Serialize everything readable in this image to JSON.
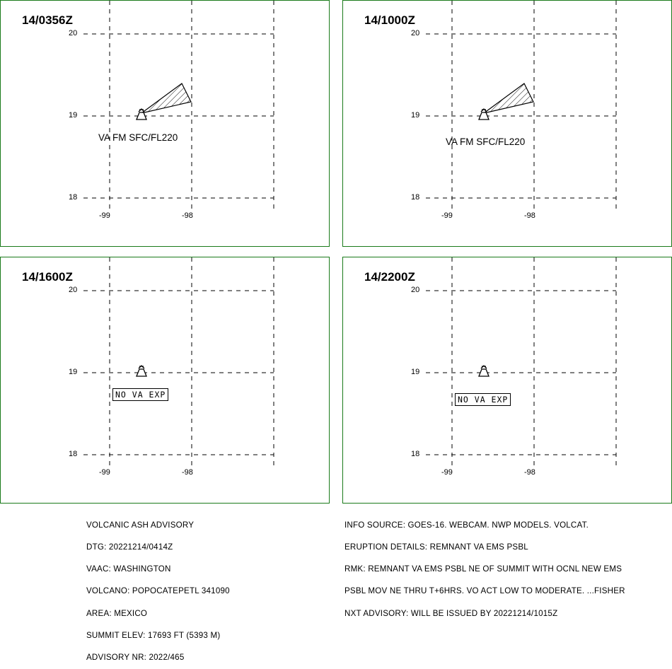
{
  "panels": [
    {
      "time": "14/0356Z",
      "ash_label": "VA FM SFC/FL220",
      "no_va": ""
    },
    {
      "time": "14/1000Z",
      "ash_label": "VA FM SFC/FL220",
      "no_va": ""
    },
    {
      "time": "14/1600Z",
      "ash_label": "",
      "no_va": "NO VA EXP"
    },
    {
      "time": "14/2200Z",
      "ash_label": "",
      "no_va": "NO VA EXP"
    }
  ],
  "axes": {
    "lat_labels": [
      "20",
      "19",
      "18"
    ],
    "lon_labels": [
      "-99",
      "-98"
    ]
  },
  "colors": {
    "panel_border": "#1a7a1a"
  },
  "advisory": {
    "lines": [
      "VOLCANIC ASH ADVISORY",
      "DTG: 20221214/0414Z",
      "VAAC: WASHINGTON",
      "VOLCANO: POPOCATEPETL 341090",
      "AREA: MEXICO",
      "SUMMIT ELEV: 17693 FT (5393 M)",
      "ADVISORY NR: 2022/465"
    ]
  },
  "info": {
    "lines": [
      "INFO SOURCE: GOES-16. WEBCAM. NWP MODELS. VOLCAT.",
      "ERUPTION DETAILS: REMNANT VA EMS PSBL",
      "RMK: REMNANT VA EMS PSBL NE OF SUMMIT WITH OCNL NEW EMS",
      "PSBL MOV NE THRU T+6HRS. VO ACT LOW TO MODERATE. ...FISHER",
      "NXT ADVISORY: WILL BE ISSUED BY 20221214/1015Z"
    ]
  }
}
